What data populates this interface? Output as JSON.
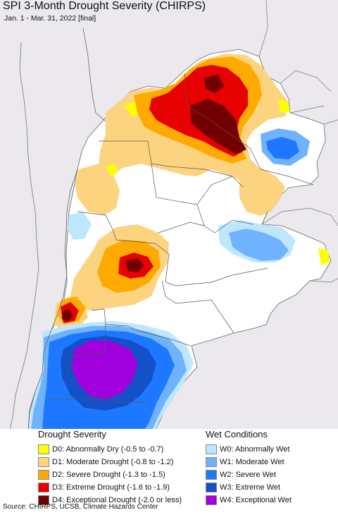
{
  "title": "SPI 3-Month Drought Severity (CHIRPS)",
  "subtitle": "Jan. 1 - Mar. 31, 2022 [final]",
  "legend": {
    "drought_heading": "Drought Severity",
    "wet_heading": "Wet Conditions",
    "drought": [
      {
        "label": "D0: Abnormally Dry (-0.5 to -0.7)",
        "color": "#ffff00"
      },
      {
        "label": "D1: Moderate Drought (-0.8 to -1.2)",
        "color": "#fcd37f"
      },
      {
        "label": "D2: Severe Drought (-1.3 to -1.5)",
        "color": "#ffaa00"
      },
      {
        "label": "D3: Extreme Drought (-1.6 to -1.9)",
        "color": "#e60000"
      },
      {
        "label": "D4: Exceptional Drought (-2.0 or less)",
        "color": "#730000"
      }
    ],
    "wet": [
      {
        "label": "W0: Abnormally Wet",
        "color": "#bfe6ff"
      },
      {
        "label": "W1: Moderate Wet",
        "color": "#6fb2ff"
      },
      {
        "label": "W2: Severe Wet",
        "color": "#1e78ff"
      },
      {
        "label": "W3: Extreme Wet",
        "color": "#1450c8"
      },
      {
        "label": "W4: Exceptional Wet",
        "color": "#a000dc"
      }
    ]
  },
  "footer": "Source: CHIRPS, UCSB, Climate Hazards Center",
  "colors": {
    "outside": "#ebe8ee",
    "land": "#ffffff",
    "border": "#555555"
  }
}
